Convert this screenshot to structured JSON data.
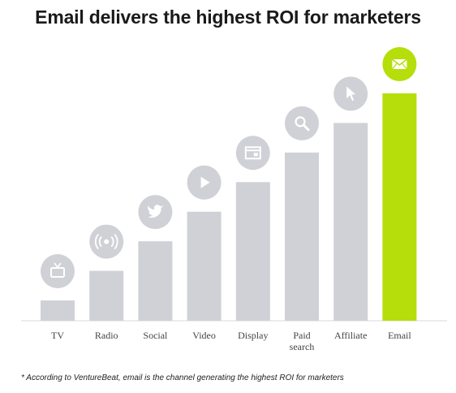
{
  "title": "Email delivers the highest ROI for marketers",
  "footnote": "* According to VentureBeat, email is the channel generating the highest ROI for marketers",
  "colors": {
    "bar": "#cfd1d6",
    "highlight": "#b5de0b",
    "icon_circle": "#cfd1d6",
    "axis": "#d9dadd",
    "tick_label": "#444444"
  },
  "chart_data": {
    "type": "bar",
    "categories": [
      "TV",
      "Radio",
      "Social",
      "Video",
      "Display",
      "Paid search",
      "Affiliate",
      "Email"
    ],
    "category_label_lines": [
      [
        "TV"
      ],
      [
        "Radio"
      ],
      [
        "Social"
      ],
      [
        "Video"
      ],
      [
        "Display"
      ],
      [
        "Paid",
        "search"
      ],
      [
        "Affiliate"
      ],
      [
        "Email"
      ]
    ],
    "values": [
      1,
      2,
      3,
      4,
      5,
      6,
      7,
      8
    ],
    "highlight_category": "Email",
    "icons": [
      "tv-icon",
      "radio-broadcast-icon",
      "twitter-bird-icon",
      "play-icon",
      "display-window-icon",
      "magnifier-icon",
      "cursor-icon",
      "envelope-icon"
    ],
    "title": "Email delivers the highest ROI for marketers",
    "xlabel": "",
    "ylabel": "",
    "ylim": [
      0,
      8
    ],
    "grid": false,
    "legend": "none"
  }
}
